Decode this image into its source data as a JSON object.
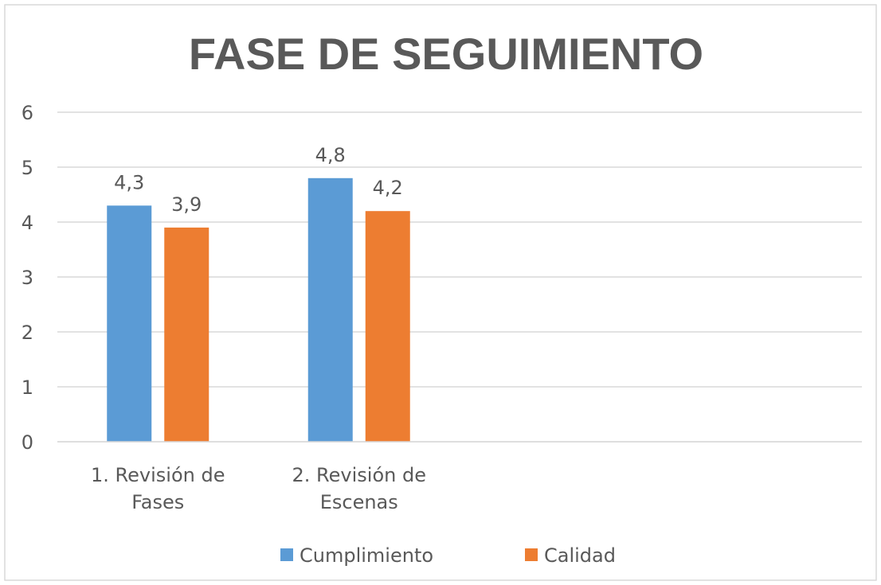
{
  "chart_data": {
    "type": "bar",
    "title": "FASE DE SEGUIMIENTO",
    "categories": [
      "1. Revisión de Fases",
      "2. Revisión de Escenas",
      null,
      null
    ],
    "series": [
      {
        "name": "Cumplimiento",
        "color": "#5b9bd5",
        "values": [
          4.3,
          4.8,
          null,
          null
        ],
        "value_labels": [
          "4,3",
          "4,8",
          null,
          null
        ]
      },
      {
        "name": "Calidad",
        "color": "#ed7d31",
        "values": [
          3.9,
          4.2,
          null,
          null
        ],
        "value_labels": [
          "3,9",
          "4,2",
          null,
          null
        ]
      }
    ],
    "ylim": [
      0,
      6
    ],
    "yticks": [
      0,
      1,
      2,
      3,
      4,
      5,
      6
    ],
    "grid": true,
    "legend": "bottom"
  }
}
